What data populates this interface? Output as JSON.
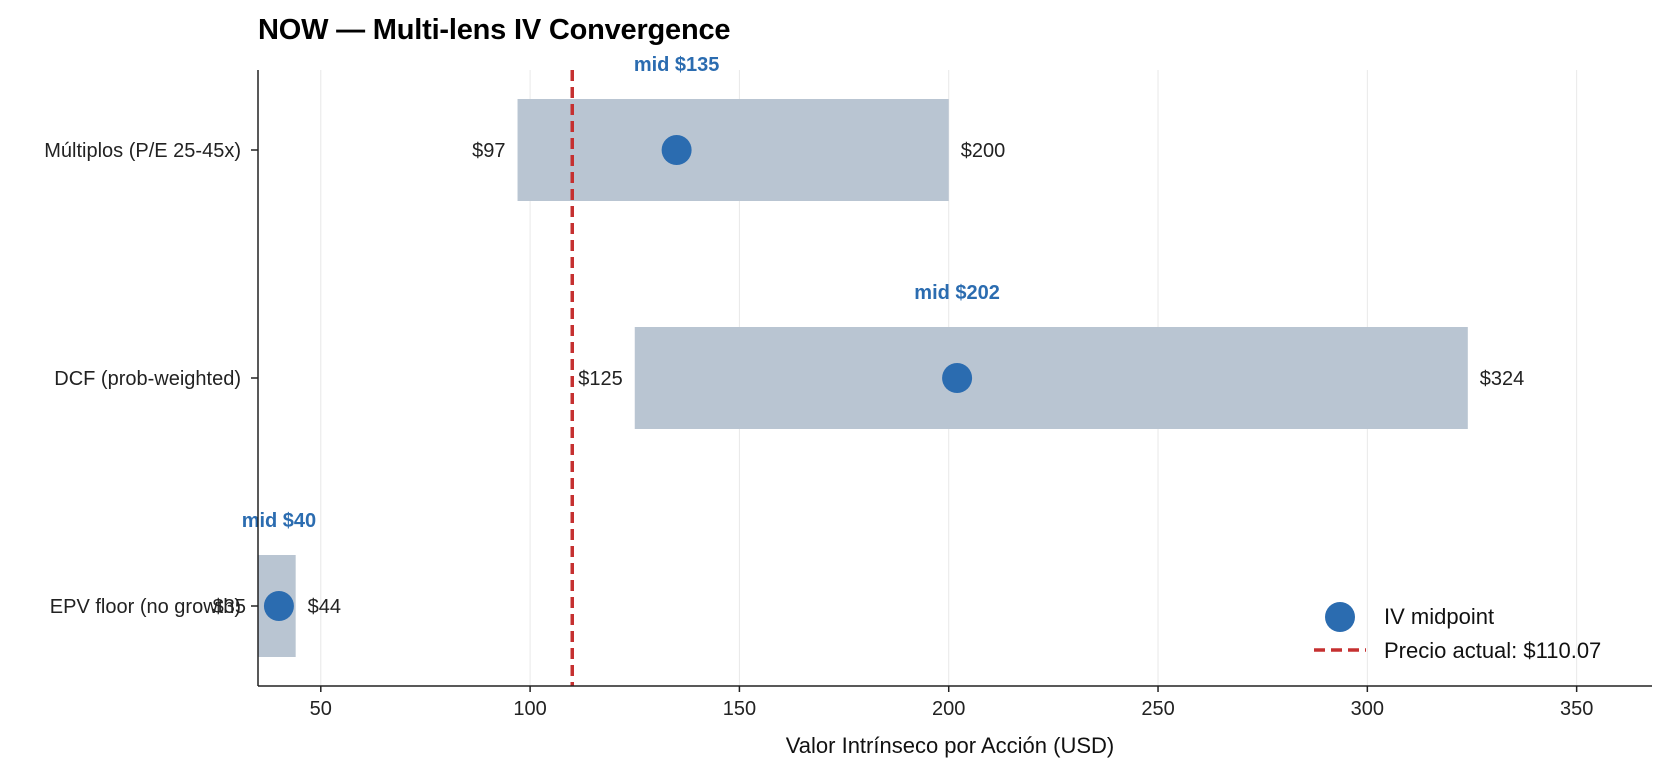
{
  "chart_data": {
    "type": "range-bar",
    "title": "NOW — Multi-lens IV Convergence",
    "xlabel": "Valor Intrínseco por Acción (USD)",
    "ylabel": "",
    "xlim": [
      35,
      368
    ],
    "xticks": [
      50,
      100,
      150,
      200,
      250,
      300,
      350
    ],
    "grid": "vertical",
    "legend_position": "bottom-right",
    "categories": [
      "Múltiplos (P/E 25-45x)",
      "DCF (prob-weighted)",
      "EPV floor (no growth)"
    ],
    "ranges": [
      {
        "low": 97,
        "high": 200,
        "mid": 135,
        "low_label": "$97",
        "high_label": "$200",
        "mid_label": "mid $135"
      },
      {
        "low": 125,
        "high": 324,
        "mid": 202,
        "low_label": "$125",
        "high_label": "$324",
        "mid_label": "mid $202"
      },
      {
        "low": 35,
        "high": 44,
        "mid": 40,
        "low_label": "$35",
        "high_label": "$44",
        "mid_label": "mid $40"
      }
    ],
    "current_price": 110.07,
    "legend": {
      "midpoint_label": "IV midpoint",
      "price_label": "Precio actual: $110.07"
    },
    "colors": {
      "bar": "#b9c5d2",
      "midpoint": "#2b6cb0",
      "price_line": "#c53030",
      "mid_text": "#2b6cb0"
    }
  }
}
